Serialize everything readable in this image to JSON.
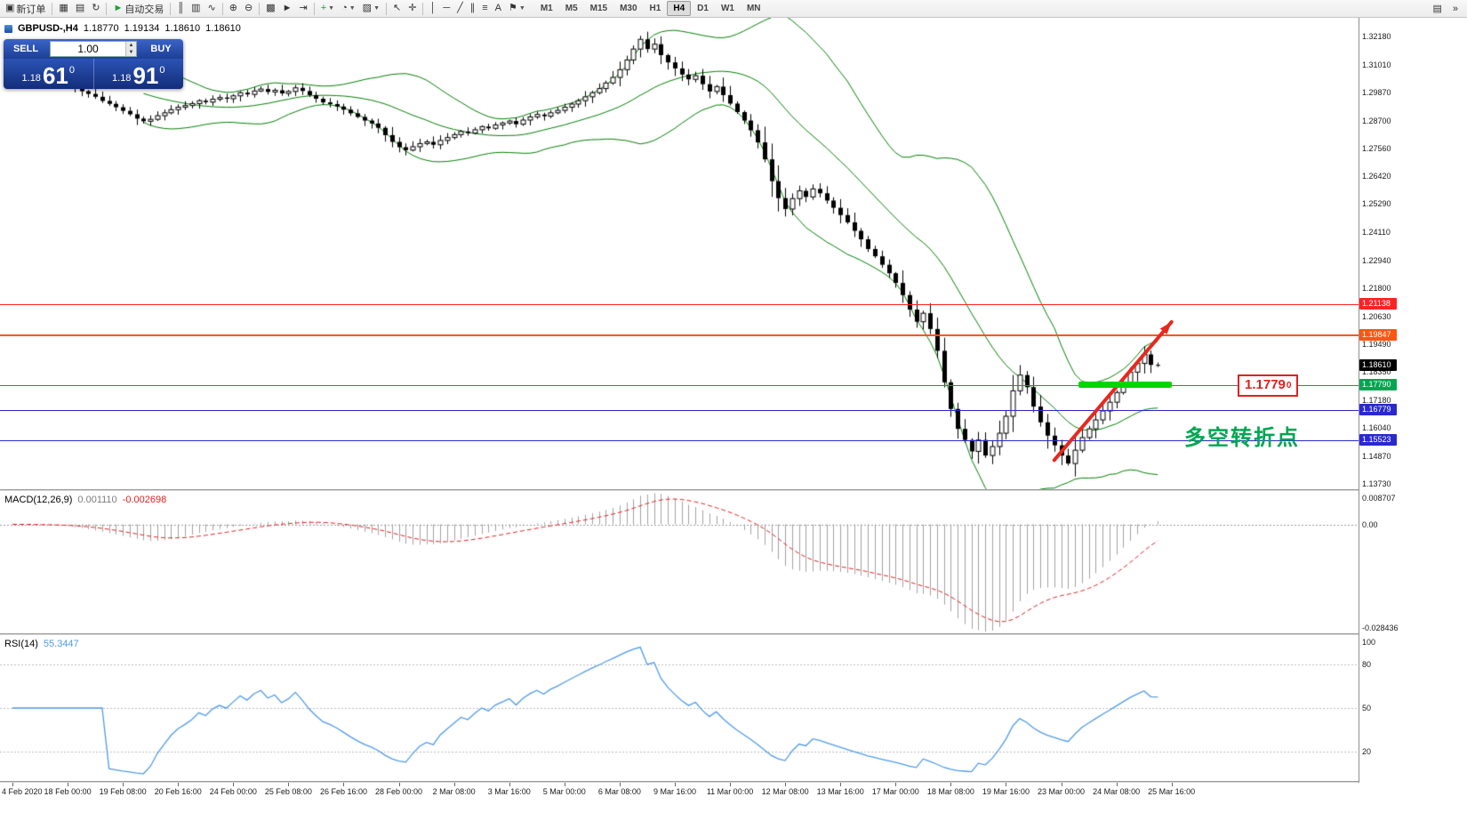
{
  "toolbar": {
    "groups": [
      {
        "items": [
          {
            "name": "new-order-button",
            "glyph": "▣",
            "label": "新订单"
          }
        ]
      },
      {
        "items": [
          {
            "name": "chart-windows-icon",
            "glyph": "▦"
          },
          {
            "name": "profiles-icon",
            "glyph": "▤"
          },
          {
            "name": "refresh-icon",
            "glyph": "↻"
          }
        ]
      },
      {
        "items": [
          {
            "name": "autotrading-button",
            "glyph": "►",
            "glyph_color": "#1f9d3a",
            "label": "自动交易"
          }
        ]
      },
      {
        "items": [
          {
            "name": "bar-chart-icon",
            "glyph": "║"
          },
          {
            "name": "candlestick-chart-icon",
            "glyph": "▥"
          },
          {
            "name": "line-chart-icon",
            "glyph": "∿"
          }
        ]
      },
      {
        "items": [
          {
            "name": "zoom-in-icon",
            "glyph": "⊕"
          },
          {
            "name": "zoom-out-icon",
            "glyph": "⊖"
          }
        ]
      },
      {
        "items": [
          {
            "name": "tile-windows-icon",
            "glyph": "▩"
          },
          {
            "name": "auto-scroll-icon",
            "glyph": "►"
          },
          {
            "name": "chart-shift-icon",
            "glyph": "⇥"
          }
        ]
      },
      {
        "items": [
          {
            "name": "indicators-dropdown",
            "glyph": "+",
            "glyph_color": "#1f9d3a",
            "caret": true
          },
          {
            "name": "periods-dropdown",
            "glyph": "◔",
            "caret": true
          },
          {
            "name": "templates-dropdown",
            "glyph": "▨",
            "caret": true
          }
        ]
      },
      {
        "items": [
          {
            "name": "cursor-icon",
            "glyph": "↖"
          },
          {
            "name": "crosshair-icon",
            "glyph": "✛"
          }
        ]
      },
      {
        "items": [
          {
            "name": "vertical-line-icon",
            "glyph": "│"
          },
          {
            "name": "horizontal-line-icon",
            "glyph": "─"
          },
          {
            "name": "trendline-icon",
            "glyph": "╱"
          },
          {
            "name": "channel-icon",
            "glyph": "∥"
          },
          {
            "name": "fibonacci-icon",
            "glyph": "≡"
          },
          {
            "name": "text-icon",
            "glyph": "A"
          },
          {
            "name": "arrow-objects-dropdown",
            "glyph": "⚑",
            "caret": true
          }
        ]
      }
    ],
    "timeframes": [
      "M1",
      "M5",
      "M15",
      "M30",
      "H1",
      "H4",
      "D1",
      "W1",
      "MN"
    ],
    "active_timeframe": "H4",
    "right_icons": [
      {
        "name": "window-list-icon",
        "glyph": "▤"
      },
      {
        "name": "more-commands-icon",
        "glyph": "»"
      }
    ]
  },
  "chart_header": {
    "symbol": "GBPUSD-,H4",
    "open": "1.18770",
    "high": "1.19134",
    "low": "1.18610",
    "close": "1.18610"
  },
  "trade_panel": {
    "sell_label": "SELL",
    "buy_label": "BUY",
    "volume": "1.00",
    "sell_price": {
      "small": "1.18",
      "big": "61",
      "sup": "0"
    },
    "buy_price": {
      "small": "1.18",
      "big": "91",
      "sup": "0"
    }
  },
  "chart_data": {
    "type": "candlestick",
    "symbol": "GBPUSD-",
    "timeframe": "H4",
    "ylim": [
      1.135,
      1.3295
    ],
    "price_axis_labels": [
      "1.32180",
      "1.31010",
      "1.29870",
      "1.28700",
      "1.27560",
      "1.26420",
      "1.25290",
      "1.24110",
      "1.22940",
      "1.21800",
      "1.20630",
      "1.19490",
      "1.18350",
      "1.17180",
      "1.16040",
      "1.14870",
      "1.13730"
    ],
    "time_axis_labels": [
      "4 Feb 2020",
      "18 Feb 00:00",
      "19 Feb 08:00",
      "20 Feb 16:00",
      "24 Feb 00:00",
      "25 Feb 08:00",
      "26 Feb 16:00",
      "28 Feb 00:00",
      "2 Mar 08:00",
      "3 Mar 16:00",
      "5 Mar 00:00",
      "6 Mar 08:00",
      "9 Mar 16:00",
      "11 Mar 00:00",
      "12 Mar 08:00",
      "13 Mar 16:00",
      "17 Mar 00:00",
      "18 Mar 08:00",
      "19 Mar 16:00",
      "23 Mar 00:00",
      "24 Mar 08:00",
      "25 Mar 16:00"
    ],
    "candles": {
      "first_open": 1.3042,
      "closes": [
        1.3048,
        1.3052,
        1.3041,
        1.3035,
        1.3042,
        1.3038,
        1.303,
        1.3025,
        1.3018,
        1.3005,
        1.2992,
        1.2981,
        1.2969,
        1.2952,
        1.294,
        1.2926,
        1.2911,
        1.2897,
        1.2879,
        1.2868,
        1.2876,
        1.2891,
        1.2903,
        1.2916,
        1.2926,
        1.2933,
        1.2941,
        1.2953,
        1.2947,
        1.2959,
        1.2966,
        1.2961,
        1.2973,
        1.2986,
        1.2979,
        1.2993,
        1.3001,
        1.2989,
        1.2996,
        1.2983,
        1.2991,
        1.3006,
        1.2993,
        1.2976,
        1.2961,
        1.2946,
        1.2939,
        1.2929,
        1.2916,
        1.2901,
        1.2886,
        1.2871,
        1.2859,
        1.2841,
        1.2811,
        1.2783,
        1.2761,
        1.2749,
        1.2763,
        1.2776,
        1.2783,
        1.2771,
        1.2789,
        1.2801,
        1.2813,
        1.2826,
        1.2819,
        1.2833,
        1.2846,
        1.2839,
        1.2853,
        1.2861,
        1.2869,
        1.2856,
        1.2873,
        1.2886,
        1.2896,
        1.2889,
        1.2903,
        1.2913,
        1.2926,
        1.2939,
        1.2953,
        1.2969,
        1.2986,
        1.3003,
        1.3026,
        1.3049,
        1.3081,
        1.3121,
        1.3166,
        1.3206,
        1.3166,
        1.3186,
        1.3141,
        1.3111,
        1.3086,
        1.3061,
        1.3041,
        1.3056,
        1.3021,
        1.2991,
        1.3011,
        1.2976,
        1.2941,
        1.2906,
        1.2871,
        1.2831,
        1.2781,
        1.2711,
        1.2621,
        1.2551,
        1.2506,
        1.2549,
        1.2581,
        1.2556,
        1.2589,
        1.2571,
        1.2541,
        1.2511,
        1.2481,
        1.2451,
        1.2416,
        1.2381,
        1.2341,
        1.2311,
        1.2276,
        1.2241,
        1.2201,
        1.2151,
        1.2091,
        1.2041,
        1.2076,
        1.2011,
        1.1921,
        1.1791,
        1.1681,
        1.1599,
        1.1553,
        1.1506,
        1.1553,
        1.1489,
        1.1526,
        1.1581,
        1.1651,
        1.1756,
        1.1821,
        1.1771,
        1.1691,
        1.1626,
        1.1571,
        1.1531,
        1.1489,
        1.1456,
        1.1511,
        1.1563,
        1.1599,
        1.1636,
        1.1673,
        1.1709,
        1.1749,
        1.179,
        1.1833,
        1.1869,
        1.1906,
        1.1863,
        1.1861
      ]
    },
    "bollinger": {
      "period": 20,
      "deviation": 2,
      "color": "#007f00"
    },
    "price_lines": [
      {
        "label": "1.21138",
        "value": 1.21138,
        "color": "#ff2222",
        "thick": false
      },
      {
        "label": "1.19847",
        "value": 1.19847,
        "color": "#ff5511",
        "thick": true
      },
      {
        "label": "1.17790",
        "value": 1.1779,
        "color": "#00a651",
        "thick": false
      },
      {
        "label": "1.16779",
        "value": 1.16779,
        "color": "#2929cc",
        "thick": false
      },
      {
        "label": "1.15523",
        "value": 1.15523,
        "color": "#2929cc",
        "thick": false
      }
    ],
    "current_price": {
      "label": "1.18610",
      "value": 1.1861,
      "color": "#000000"
    },
    "highlight_segment": {
      "price": 1.1779,
      "from_bar": 154.5,
      "to_bar": 168,
      "color": "#00d600"
    },
    "trend_arrow": {
      "from_bar": 151,
      "from_price": 1.147,
      "to_bar": 168,
      "to_price": 1.204,
      "color": "#e8281e"
    },
    "price_callout": {
      "main": "1.1779",
      "sup": "0",
      "color": "#e02020"
    },
    "annotation": {
      "text": "多空转折点",
      "color": "#00a651"
    },
    "macd": {
      "title": "MACD(12,26,9)",
      "main_value": "0.001110",
      "signal_value": "-0.002698",
      "fast": 12,
      "slow": 26,
      "signal_period": 9,
      "scale_labels": [
        "0.008707",
        "0.00",
        "-0.028436"
      ],
      "ylim": [
        -0.0284,
        0.0087
      ],
      "hist_color": "#a0a0a0",
      "signal_color": "#e02020"
    },
    "rsi": {
      "title": "RSI(14)",
      "value": "55.3447",
      "period": 14,
      "scale_labels": [
        "100",
        "80",
        "50",
        "20"
      ],
      "levels": [
        80,
        50,
        20
      ],
      "ylim": [
        0,
        100
      ],
      "color": "#4f9be8"
    }
  }
}
